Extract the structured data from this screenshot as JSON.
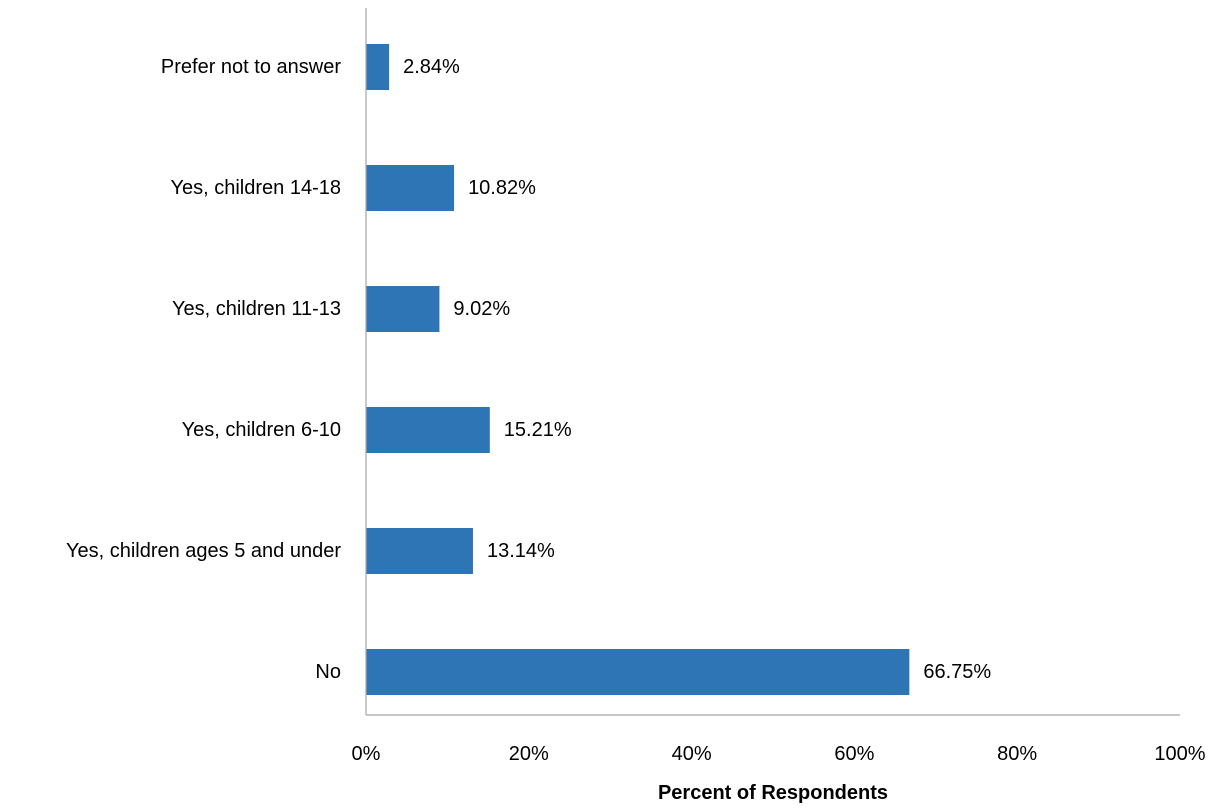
{
  "chart_data": {
    "type": "bar",
    "orientation": "horizontal",
    "categories": [
      "Prefer not to answer",
      "Yes, children 14-18",
      "Yes, children 11-13",
      "Yes, children 6-10",
      "Yes, children ages 5 and under",
      "No"
    ],
    "values": [
      2.84,
      10.82,
      9.02,
      15.21,
      13.14,
      66.75
    ],
    "data_labels": [
      "2.84%",
      "10.82%",
      "9.02%",
      "15.21%",
      "13.14%",
      "66.75%"
    ],
    "xlabel": "Percent of Respondents",
    "ylabel": "",
    "xlim": [
      0,
      100
    ],
    "x_ticks": [
      0,
      20,
      40,
      60,
      80,
      100
    ],
    "x_tick_labels": [
      "0%",
      "20%",
      "40%",
      "60%",
      "80%",
      "100%"
    ],
    "bar_color": "#2e75b6",
    "grid": false,
    "legend": "none"
  }
}
